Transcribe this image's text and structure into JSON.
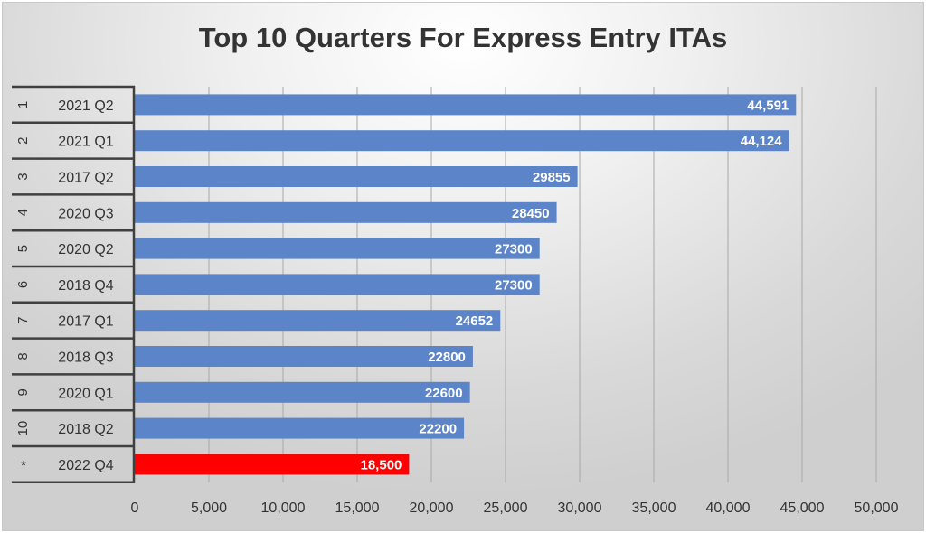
{
  "chart_data": {
    "type": "bar",
    "orientation": "horizontal",
    "title": "Top 10 Quarters For Express Entry ITAs",
    "ranks": [
      "1",
      "2",
      "3",
      "4",
      "5",
      "6",
      "7",
      "8",
      "9",
      "10",
      "*"
    ],
    "categories": [
      "2021 Q2",
      "2021 Q1",
      "2017 Q2",
      "2020 Q3",
      "2020 Q2",
      "2018 Q4",
      "2017 Q1",
      "2018 Q3",
      "2020 Q1",
      "2018 Q2",
      "2022 Q4"
    ],
    "values": [
      44591,
      44124,
      29855,
      28450,
      27300,
      27300,
      24652,
      22800,
      22600,
      22200,
      18500
    ],
    "data_labels": [
      "44,591",
      "44,124",
      "29855",
      "28450",
      "27300",
      "27300",
      "24652",
      "22800",
      "22600",
      "22200",
      "18,500"
    ],
    "colors": [
      "#5b85c8",
      "#5b85c8",
      "#5b85c8",
      "#5b85c8",
      "#5b85c8",
      "#5b85c8",
      "#5b85c8",
      "#5b85c8",
      "#5b85c8",
      "#5b85c8",
      "#ff0000"
    ],
    "xlim": [
      0,
      50000
    ],
    "xticks": [
      "0",
      "5,000",
      "10,000",
      "15,000",
      "20,000",
      "25,000",
      "30,000",
      "35,000",
      "40,000",
      "45,000",
      "50,000"
    ],
    "grid": true,
    "legend": "none"
  }
}
